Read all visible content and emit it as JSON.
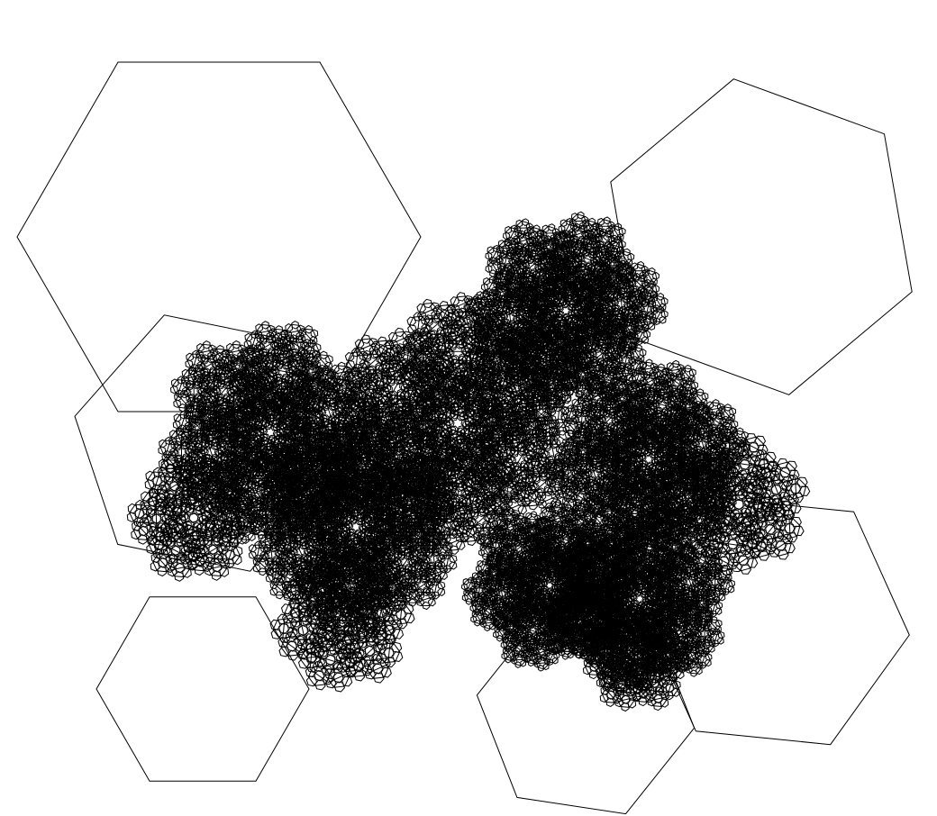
{
  "figure": {
    "kind": "recursive hexagon fractal line drawing",
    "shape": "hexagon",
    "stroke_color": "#000000",
    "background_color": "#ffffff",
    "fill": "none"
  }
}
